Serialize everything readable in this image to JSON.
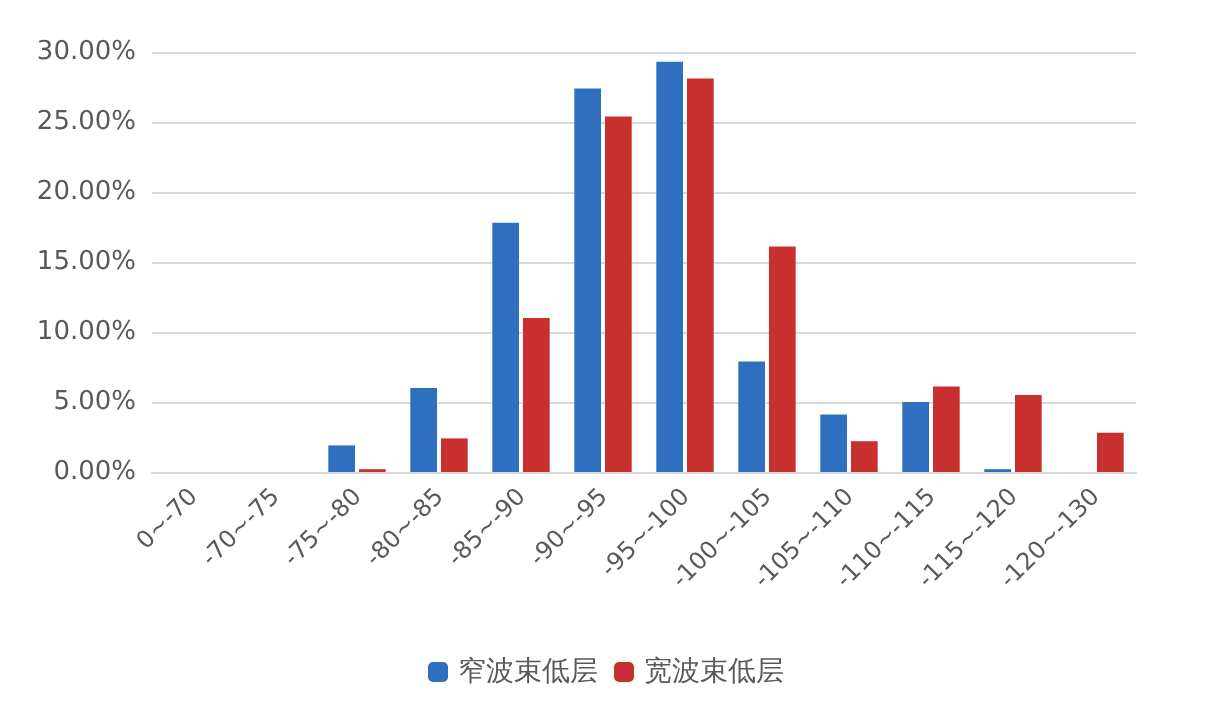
{
  "chart_data": {
    "type": "bar",
    "categories": [
      "0~-70",
      "-70~-75",
      "-75~-80",
      "-80~-85",
      "-85~-90",
      "-90~-95",
      "-95~-100",
      "-100~-105",
      "-105~-110",
      "-110~-115",
      "-115~-120",
      "-120~-130"
    ],
    "series": [
      {
        "name": "窄波束低层",
        "color": "#2e6fc0",
        "values": [
          0,
          0,
          1.9,
          6.0,
          17.8,
          27.4,
          29.3,
          7.9,
          4.1,
          5.0,
          0.2,
          0
        ]
      },
      {
        "name": "宽波束低层",
        "color": "#c8302f",
        "values": [
          0,
          0,
          0.2,
          2.4,
          11.0,
          25.4,
          28.1,
          16.1,
          2.2,
          6.1,
          5.5,
          2.8
        ]
      }
    ],
    "ylim": [
      0,
      30
    ],
    "yticks": [
      {
        "value": 0,
        "label": "0.00%"
      },
      {
        "value": 5,
        "label": "5.00%"
      },
      {
        "value": 10,
        "label": "10.00%"
      },
      {
        "value": 15,
        "label": "15.00%"
      },
      {
        "value": 20,
        "label": "20.00%"
      },
      {
        "value": 25,
        "label": "25.00%"
      },
      {
        "value": 30,
        "label": "30.00%"
      }
    ],
    "grid": "y",
    "legend": "bottom"
  }
}
